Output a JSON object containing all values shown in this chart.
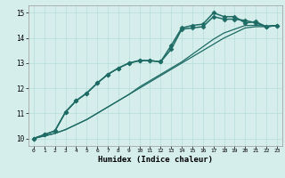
{
  "xlabel": "Humidex (Indice chaleur)",
  "ylabel": "",
  "background_color": "#d5eeeb",
  "grid_color": "#b8ddd9",
  "line_color": "#1e6b65",
  "xlim": [
    -0.5,
    23.5
  ],
  "ylim": [
    9.7,
    15.3
  ],
  "xticks": [
    0,
    1,
    2,
    3,
    4,
    5,
    6,
    7,
    8,
    9,
    10,
    11,
    12,
    13,
    14,
    15,
    16,
    17,
    18,
    19,
    20,
    21,
    22,
    23
  ],
  "yticks": [
    10,
    11,
    12,
    13,
    14,
    15
  ],
  "series": [
    {
      "x": [
        0,
        1,
        2,
        3,
        4,
        5,
        6,
        7,
        8,
        9,
        10,
        11,
        12,
        13,
        14,
        15,
        16,
        17,
        18,
        19,
        20,
        21,
        22,
        23
      ],
      "y": [
        10.0,
        10.1,
        10.2,
        10.35,
        10.55,
        10.75,
        11.0,
        11.25,
        11.5,
        11.75,
        12.0,
        12.25,
        12.5,
        12.75,
        13.0,
        13.25,
        13.5,
        13.75,
        14.0,
        14.2,
        14.4,
        14.45,
        14.45,
        14.5
      ],
      "marker": false,
      "linewidth": 0.9
    },
    {
      "x": [
        0,
        1,
        2,
        3,
        4,
        5,
        6,
        7,
        8,
        9,
        10,
        11,
        12,
        13,
        14,
        15,
        16,
        17,
        18,
        19,
        20,
        21,
        22,
        23
      ],
      "y": [
        10.0,
        10.1,
        10.2,
        10.35,
        10.55,
        10.75,
        11.0,
        11.25,
        11.5,
        11.75,
        12.05,
        12.3,
        12.55,
        12.8,
        13.05,
        13.35,
        13.65,
        13.95,
        14.2,
        14.35,
        14.5,
        14.5,
        14.48,
        14.5
      ],
      "marker": false,
      "linewidth": 0.9
    },
    {
      "x": [
        0,
        1,
        2,
        3,
        4,
        5,
        6,
        7,
        8,
        9,
        10,
        11,
        12,
        13,
        14,
        15,
        16,
        17,
        18,
        19,
        20,
        21,
        22,
        23
      ],
      "y": [
        10.0,
        10.15,
        10.3,
        11.05,
        11.5,
        11.8,
        12.2,
        12.55,
        12.8,
        13.0,
        13.1,
        13.1,
        13.05,
        13.55,
        14.35,
        14.4,
        14.45,
        14.85,
        14.75,
        14.75,
        14.7,
        14.6,
        14.45,
        14.5
      ],
      "marker": true,
      "linewidth": 1.1
    },
    {
      "x": [
        0,
        1,
        2,
        3,
        4,
        5,
        6,
        7,
        8,
        9,
        10,
        11,
        12,
        13,
        14,
        15,
        16,
        17,
        18,
        19,
        20,
        21,
        22,
        23
      ],
      "y": [
        10.0,
        10.15,
        10.3,
        11.05,
        11.5,
        11.8,
        12.2,
        12.55,
        12.8,
        13.0,
        13.1,
        13.1,
        13.05,
        13.7,
        14.4,
        14.5,
        14.55,
        15.0,
        14.85,
        14.85,
        14.6,
        14.65,
        14.45,
        14.5
      ],
      "marker": true,
      "linewidth": 1.1
    }
  ]
}
